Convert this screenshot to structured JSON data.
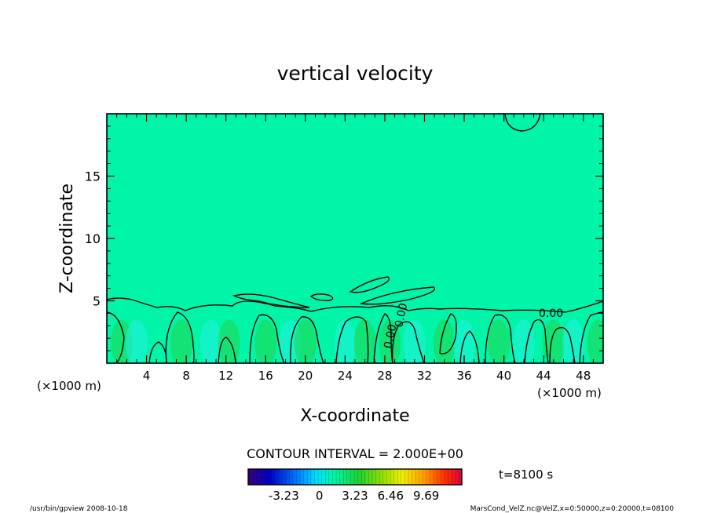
{
  "chart_data": {
    "type": "heatmap",
    "title": "vertical velocity",
    "xlabel": "X-coordinate",
    "ylabel": "Z-coordinate",
    "x_units": "(×1000 m)",
    "xlim": [
      0,
      50
    ],
    "ylim": [
      0,
      20
    ],
    "x_ticks": [
      4,
      8,
      12,
      16,
      20,
      24,
      28,
      32,
      36,
      40,
      44,
      48
    ],
    "y_ticks": [
      5,
      10,
      15
    ],
    "contour_interval": "CONTOUR INTERVAL = 2.000E+00",
    "contour_labels": [
      "0.00",
      "0.00",
      "0.00"
    ],
    "colorbar": {
      "ticks": [
        "-3.23",
        "0",
        "3.23",
        "6.46",
        "9.69"
      ],
      "range": [
        -6.46,
        12.92
      ]
    },
    "time_label": "t=8100 s",
    "footer_left": "/usr/bin/gpview   2008-10-18",
    "footer_right": "MarsCond_VelZ.nc@VelZ,x=0:50000,z=0:20000,t=08100",
    "colors": {
      "background_field": "#00f5a8",
      "positive_field": "#22d44a",
      "negative_field": "#22f0e0",
      "contour": "#000000"
    }
  }
}
